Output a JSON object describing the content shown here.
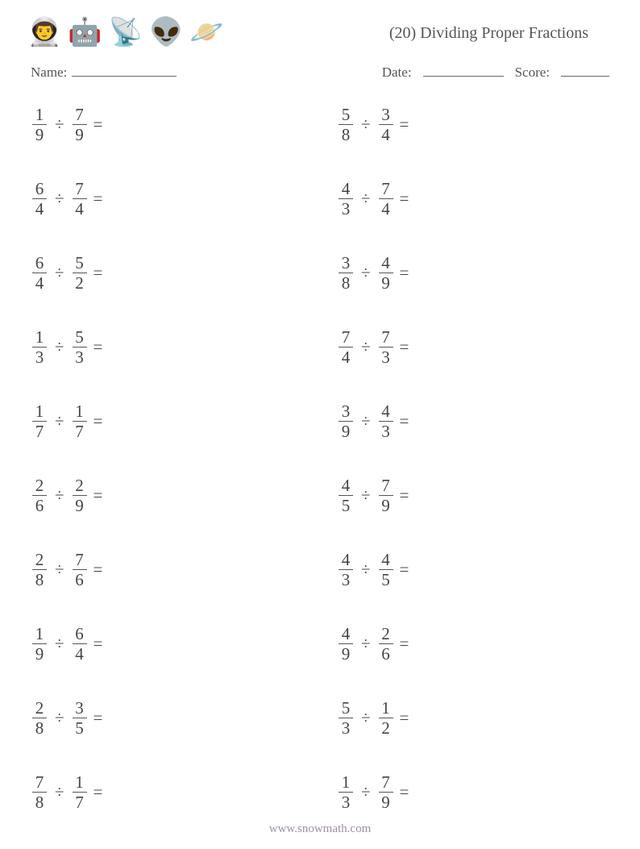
{
  "header": {
    "title": "(20) Dividing Proper Fractions",
    "icons": [
      "👨‍🚀",
      "🤖",
      "📡",
      "👽",
      "🪐"
    ]
  },
  "info": {
    "name_label": "Name:",
    "date_label": "Date:",
    "score_label": "Score:"
  },
  "divide_symbol": "÷",
  "equals_symbol": "=",
  "problems_left": [
    {
      "a_num": "1",
      "a_den": "9",
      "b_num": "7",
      "b_den": "9"
    },
    {
      "a_num": "6",
      "a_den": "4",
      "b_num": "7",
      "b_den": "4"
    },
    {
      "a_num": "6",
      "a_den": "4",
      "b_num": "5",
      "b_den": "2"
    },
    {
      "a_num": "1",
      "a_den": "3",
      "b_num": "5",
      "b_den": "3"
    },
    {
      "a_num": "1",
      "a_den": "7",
      "b_num": "1",
      "b_den": "7"
    },
    {
      "a_num": "2",
      "a_den": "6",
      "b_num": "2",
      "b_den": "9"
    },
    {
      "a_num": "2",
      "a_den": "8",
      "b_num": "7",
      "b_den": "6"
    },
    {
      "a_num": "1",
      "a_den": "9",
      "b_num": "6",
      "b_den": "4"
    },
    {
      "a_num": "2",
      "a_den": "8",
      "b_num": "3",
      "b_den": "5"
    },
    {
      "a_num": "7",
      "a_den": "8",
      "b_num": "1",
      "b_den": "7"
    }
  ],
  "problems_right": [
    {
      "a_num": "5",
      "a_den": "8",
      "b_num": "3",
      "b_den": "4"
    },
    {
      "a_num": "4",
      "a_den": "3",
      "b_num": "7",
      "b_den": "4"
    },
    {
      "a_num": "3",
      "a_den": "8",
      "b_num": "4",
      "b_den": "9"
    },
    {
      "a_num": "7",
      "a_den": "4",
      "b_num": "7",
      "b_den": "3"
    },
    {
      "a_num": "3",
      "a_den": "9",
      "b_num": "4",
      "b_den": "3"
    },
    {
      "a_num": "4",
      "a_den": "5",
      "b_num": "7",
      "b_den": "9"
    },
    {
      "a_num": "4",
      "a_den": "3",
      "b_num": "4",
      "b_den": "5"
    },
    {
      "a_num": "4",
      "a_den": "9",
      "b_num": "2",
      "b_den": "6"
    },
    {
      "a_num": "5",
      "a_den": "3",
      "b_num": "1",
      "b_den": "2"
    },
    {
      "a_num": "1",
      "a_den": "3",
      "b_num": "7",
      "b_den": "9"
    }
  ],
  "footer": {
    "url": "www.snowmath.com"
  },
  "colors": {
    "text": "#555555",
    "bar": "#555555",
    "footer": "#9b8fa8",
    "background": "#ffffff"
  }
}
